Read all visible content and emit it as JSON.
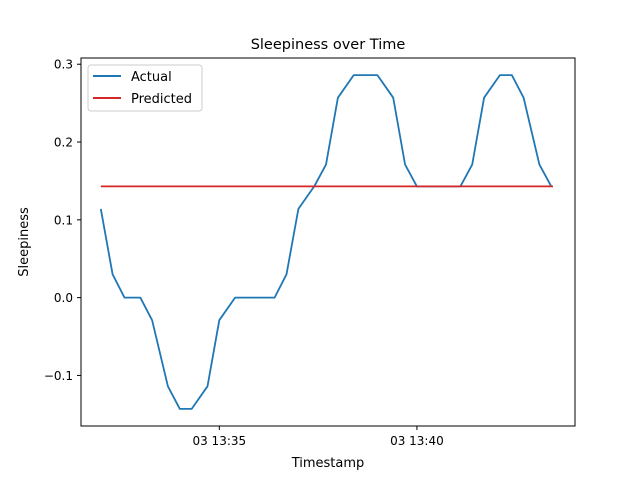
{
  "chart_data": {
    "type": "line",
    "title": "Sleepiness over Time",
    "xlabel": "Timestamp",
    "ylabel": "Sleepiness",
    "x_unit": "minutes after 03 13:35",
    "xlim": [
      -3.5,
      9.0
    ],
    "ylim": [
      -0.165,
      0.308
    ],
    "x_ticks": [
      {
        "value": 0,
        "label": "03 13:35"
      },
      {
        "value": 5,
        "label": "03 13:40"
      }
    ],
    "y_ticks": [
      {
        "value": -0.1,
        "label": "−0.1"
      },
      {
        "value": 0.0,
        "label": "0.0"
      },
      {
        "value": 0.1,
        "label": "0.1"
      },
      {
        "value": 0.2,
        "label": "0.2"
      },
      {
        "value": 0.3,
        "label": "0.3"
      }
    ],
    "grid": false,
    "legend_position": "top-left",
    "series": [
      {
        "name": "Actual",
        "color": "#1f77b4",
        "x": [
          -3.0,
          -2.7,
          -2.4,
          -2.0,
          -1.7,
          -1.3,
          -1.0,
          -0.7,
          -0.3,
          0.0,
          0.4,
          0.7,
          1.0,
          1.4,
          1.7,
          2.0,
          2.4,
          2.7,
          3.0,
          3.4,
          3.7,
          4.0,
          4.4,
          4.7,
          5.0,
          5.4,
          5.7,
          6.1,
          6.4,
          6.7,
          7.1,
          7.4,
          7.7,
          8.1,
          8.4
        ],
        "y": [
          0.114,
          0.03,
          0.0,
          0.0,
          -0.029,
          -0.114,
          -0.143,
          -0.143,
          -0.114,
          -0.029,
          0.0,
          0.0,
          0.0,
          0.0,
          0.03,
          0.114,
          0.143,
          0.171,
          0.257,
          0.286,
          0.286,
          0.286,
          0.257,
          0.171,
          0.143,
          0.143,
          0.143,
          0.143,
          0.171,
          0.257,
          0.286,
          0.286,
          0.257,
          0.171,
          0.143
        ]
      },
      {
        "name": "Predicted",
        "color": "#d62728",
        "x": [
          -3.0,
          9.0
        ],
        "y": [
          0.143,
          0.143
        ]
      }
    ]
  }
}
